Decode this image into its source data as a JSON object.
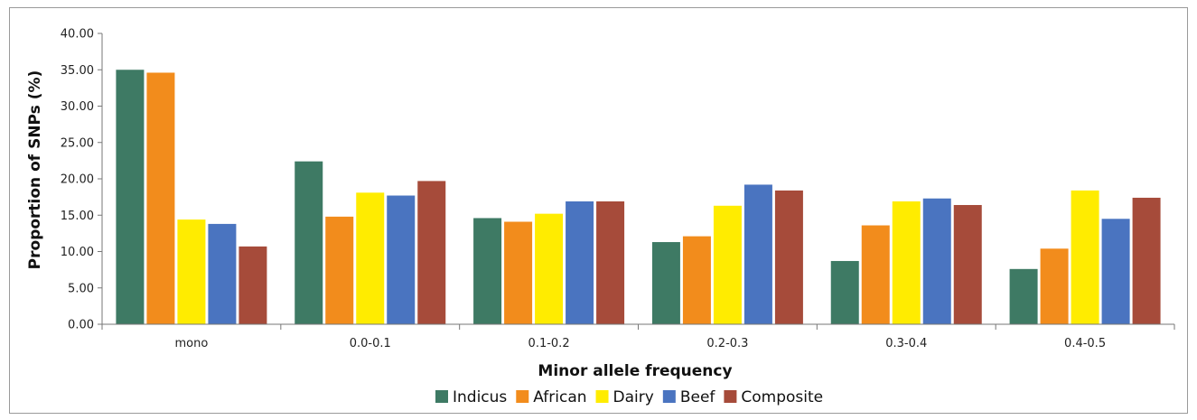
{
  "chart_data": {
    "type": "bar",
    "title": "",
    "xlabel": "Minor allele frequency",
    "ylabel": "Proportion of SNPs (%)",
    "ylim": [
      0,
      40
    ],
    "ytick_step": 5,
    "ytick_labels": [
      "0.00",
      "5.00",
      "10.00",
      "15.00",
      "20.00",
      "25.00",
      "30.00",
      "35.00",
      "40.00"
    ],
    "grid": false,
    "legend_position": "bottom",
    "categories": [
      "mono",
      "0.0-0.1",
      "0.1-0.2",
      "0.2-0.3",
      "0.3-0.4",
      "0.4-0.5"
    ],
    "series": [
      {
        "name": "Indicus",
        "color": "#3e7a64",
        "values": [
          35.0,
          22.4,
          14.6,
          11.3,
          8.7,
          7.6
        ]
      },
      {
        "name": "African",
        "color": "#f28c1c",
        "values": [
          34.6,
          14.8,
          14.1,
          12.1,
          13.6,
          10.4
        ]
      },
      {
        "name": "Dairy",
        "color": "#ffec00",
        "values": [
          14.4,
          18.1,
          15.2,
          16.3,
          16.9,
          18.4
        ]
      },
      {
        "name": "Beef",
        "color": "#4a74c0",
        "values": [
          13.8,
          17.7,
          16.9,
          19.2,
          17.3,
          14.5
        ]
      },
      {
        "name": "Composite",
        "color": "#a64b3a",
        "values": [
          10.7,
          19.7,
          16.9,
          18.4,
          16.4,
          17.4
        ]
      }
    ]
  }
}
